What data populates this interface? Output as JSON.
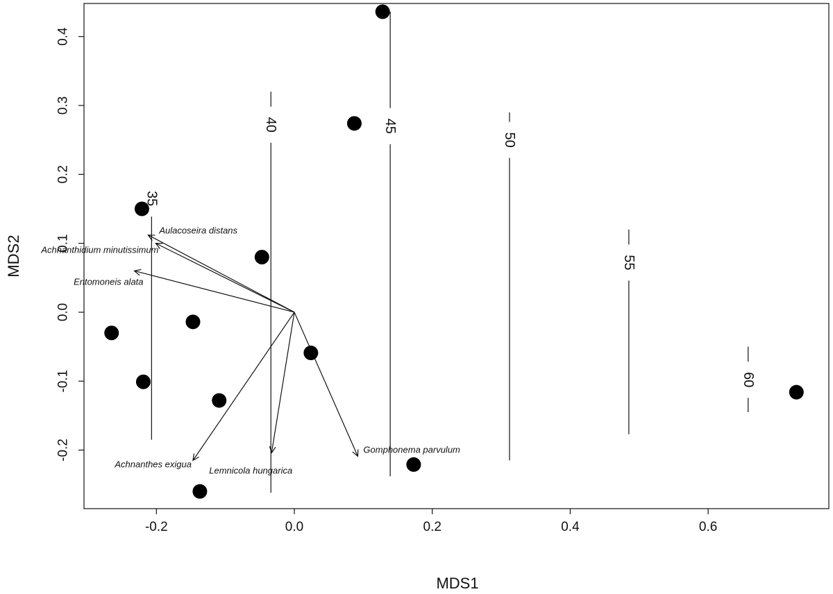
{
  "chart_data": {
    "type": "scatter",
    "xlabel": "MDS1",
    "ylabel": "MDS2",
    "xlim": [
      -0.305,
      0.775
    ],
    "ylim": [
      -0.285,
      0.448
    ],
    "x_ticks": [
      -0.2,
      0.0,
      0.2,
      0.4,
      0.6
    ],
    "x_tick_labels": [
      "-0.2",
      "0.0",
      "0.2",
      "0.4",
      "0.6"
    ],
    "y_ticks": [
      -0.2,
      -0.1,
      0.0,
      0.1,
      0.2,
      0.3,
      0.4
    ],
    "y_tick_labels": [
      "-0.2",
      "-0.1",
      "0.0",
      "0.1",
      "0.2",
      "0.3",
      "0.4"
    ],
    "grid": false,
    "points": [
      {
        "x": 0.128,
        "y": 0.436
      },
      {
        "x": 0.087,
        "y": 0.274
      },
      {
        "x": -0.221,
        "y": 0.15
      },
      {
        "x": -0.047,
        "y": 0.08
      },
      {
        "x": -0.147,
        "y": -0.014
      },
      {
        "x": -0.265,
        "y": -0.03
      },
      {
        "x": 0.024,
        "y": -0.059
      },
      {
        "x": -0.219,
        "y": -0.101
      },
      {
        "x": -0.109,
        "y": -0.128
      },
      {
        "x": 0.173,
        "y": -0.221
      },
      {
        "x": -0.137,
        "y": -0.26
      },
      {
        "x": 0.728,
        "y": -0.116
      }
    ],
    "contours": [
      {
        "label": "35",
        "x": -0.207,
        "y_from": -0.185,
        "y_to": 0.18,
        "label_y": 0.165
      },
      {
        "label": "40",
        "x": -0.034,
        "y_from": -0.262,
        "y_to": 0.32,
        "label_y": 0.272
      },
      {
        "label": "45",
        "x": 0.139,
        "y_from": -0.238,
        "y_to": 0.436,
        "label_y": 0.27
      },
      {
        "label": "50",
        "x": 0.312,
        "y_from": -0.215,
        "y_to": 0.29,
        "label_y": 0.25
      },
      {
        "label": "55",
        "x": 0.485,
        "y_from": -0.177,
        "y_to": 0.12,
        "label_y": 0.072
      },
      {
        "label": "60",
        "x": 0.658,
        "y_from": -0.145,
        "y_to": -0.05,
        "label_y": -0.098
      }
    ],
    "vectors": [
      {
        "species": "Aulacoseira distans",
        "x": -0.201,
        "y": 0.1
      },
      {
        "species": "Achnanthidium minutissimum",
        "x": -0.212,
        "y": 0.112
      },
      {
        "species": "Entomoneis alata",
        "x": -0.232,
        "y": 0.06
      },
      {
        "species": "Achnanthes exigua",
        "x": -0.147,
        "y": -0.215
      },
      {
        "species": "Lemnicola hungarica",
        "x": -0.033,
        "y": -0.204
      },
      {
        "species": "Gomphonema parvulum",
        "x": 0.092,
        "y": -0.209
      }
    ]
  }
}
